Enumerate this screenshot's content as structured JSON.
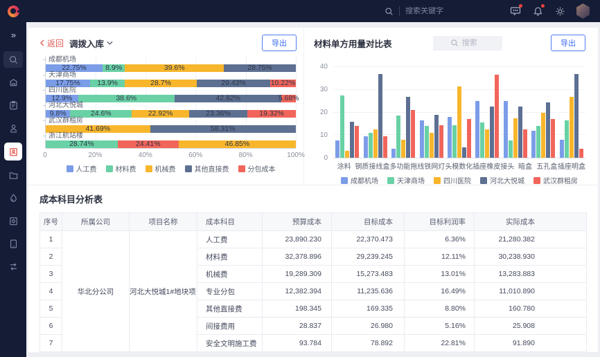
{
  "topbar": {
    "search_placeholder": "搜索关键字",
    "icons": [
      "search-icon",
      "messages-icon",
      "notifications-icon",
      "settings-gear-icon",
      "user-avatar"
    ],
    "notification_dot_color": "#f5413d"
  },
  "sidebar": {
    "icons": [
      "expand-icon",
      "search-icon",
      "building-icon",
      "clipboard-edit-icon",
      "user-stamp-icon",
      "clipboard-user-icon",
      "folder-icon",
      "water-drop-icon",
      "clipboard-gear-icon",
      "tablet-icon",
      "flow-icon"
    ],
    "active_index": 5,
    "active_color": "#e4574d"
  },
  "theme": {
    "topbar_bg": "#151c35",
    "accent_blue": "#3d6ef0",
    "back_red": "#e05a52",
    "card_bg": "#ffffff",
    "page_bg": "#edeff3"
  },
  "left_panel": {
    "back_label": "返回",
    "title": "调拨入库",
    "export_label": "导出"
  },
  "right_panel": {
    "title": "材料单方用量对比表",
    "search_placeholder": "搜索",
    "export_label": "导出"
  },
  "chart_data": [
    {
      "type": "bar",
      "variant": "horizontal-stacked-percent",
      "title": "调拨入库",
      "legend": [
        "人工费",
        "材料费",
        "机械费",
        "其他直接费",
        "分包成本"
      ],
      "series_colors": {
        "人工费": "#7b9de8",
        "材料费": "#69d1a5",
        "机械费": "#f8b62c",
        "其他直接费": "#5d7092",
        "分包成本": "#f1655b"
      },
      "xticks": [
        "0",
        "20%",
        "40%",
        "60%",
        "80%",
        "100%"
      ],
      "xlim": [
        0,
        100
      ],
      "legend_position": "bottom",
      "grid": true,
      "bars": [
        {
          "category": "成都机场",
          "segments": [
            [
              "人工费",
              22.75,
              "22.75%"
            ],
            [
              "材料费",
              8.9,
              "8.9%"
            ],
            [
              "机械费",
              39.6,
              "39.6%"
            ],
            [
              "其他直接费",
              28.75,
              "28.75%"
            ]
          ]
        },
        {
          "category": "天津商场",
          "segments": [
            [
              "人工费",
              17.75,
              "17.75%"
            ],
            [
              "材料费",
              13.9,
              "13.9%"
            ],
            [
              "机械费",
              28.7,
              "28.7%"
            ],
            [
              "其他直接费",
              29.43,
              "29.43%"
            ],
            [
              "分包成本",
              10.22,
              "10.22%"
            ]
          ]
        },
        {
          "category": "四川医院",
          "segments": [
            [
              "人工费",
              12.9,
              "12.9%"
            ],
            [
              "材料费",
              38.6,
              "38.6%"
            ],
            [
              "其他直接费",
              42.82,
              "42.82%"
            ],
            [
              "分包成本",
              5.68,
              "5.68%"
            ]
          ]
        },
        {
          "category": "河北大悦城",
          "segments": [
            [
              "人工费",
              9.8,
              "9.8%"
            ],
            [
              "材料费",
              24.6,
              "24.6%"
            ],
            [
              "机械费",
              22.92,
              "22.92%"
            ],
            [
              "其他直接费",
              23.36,
              "23.36%"
            ],
            [
              "分包成本",
              19.32,
              "19.32%"
            ]
          ]
        },
        {
          "category": "武汉群租房",
          "segments": [
            [
              "机械费",
              41.69,
              "41.69%"
            ],
            [
              "其他直接费",
              58.31,
              "58.31%"
            ]
          ]
        },
        {
          "category": "浙江航站楼",
          "segments": [
            [
              "材料费",
              28.74,
              "28.74%"
            ],
            [
              "分包成本",
              24.41,
              "24.41%"
            ],
            [
              "机械费",
              46.85,
              "46.85%"
            ]
          ]
        }
      ]
    },
    {
      "type": "bar",
      "variant": "grouped",
      "title": "材料单方用量对比表",
      "categories": [
        "涂料",
        "钢质接线盒",
        "多功能拖线",
        "铁网灯头",
        "模数化插座",
        "橡皮接头",
        "暗盒",
        "五孔盒",
        "插座明盒"
      ],
      "series": [
        {
          "name": "成都机场",
          "color": "#7b9de8",
          "values": [
            7.5,
            9.5,
            4,
            16.5,
            18,
            25,
            25,
            12,
            8
          ]
        },
        {
          "name": "天津商场",
          "color": "#69d1a5",
          "values": [
            27.5,
            11,
            18.5,
            14,
            14.5,
            15.5,
            7.5,
            14,
            16.5
          ]
        },
        {
          "name": "四川医院",
          "color": "#f8b62c",
          "values": [
            3,
            12.5,
            8,
            11,
            31.5,
            12.5,
            17.5,
            20,
            27
          ]
        },
        {
          "name": "河北大悦城",
          "color": "#5d7092",
          "values": [
            16,
            37,
            27,
            19,
            4.5,
            22.5,
            22.5,
            24.5,
            37
          ]
        },
        {
          "name": "武汉群租房",
          "color": "#f1655b",
          "values": [
            14,
            9.5,
            21,
            14.5,
            17,
            36.5,
            12.5,
            17,
            4
          ]
        }
      ],
      "ylim": [
        0,
        40
      ],
      "yticks": [
        0,
        10,
        20,
        30,
        40
      ],
      "grid": true,
      "legend_position": "bottom"
    }
  ],
  "cost_table": {
    "title": "成本科目分析表",
    "headers": [
      "序号",
      "所属公司",
      "项目名称",
      "成本科目",
      "预算成本",
      "目标成本",
      "目标利润率",
      "实际成本"
    ],
    "company": "华北分公司",
    "project": "河北大悦城1#地块项目",
    "rows": [
      {
        "no": "1",
        "subject": "人工费",
        "budget": "23,890.230",
        "target": "22,370.473",
        "margin": "6.36%",
        "actual": "21,280.382"
      },
      {
        "no": "2",
        "subject": "材料费",
        "budget": "32,378.896",
        "target": "29,239.245",
        "margin": "12.11%",
        "actual": "30,238.930"
      },
      {
        "no": "3",
        "subject": "机械费",
        "budget": "19,289.309",
        "target": "15,273.483",
        "margin": "13.01%",
        "actual": "13,283.883"
      },
      {
        "no": "4",
        "subject": "专业分包",
        "budget": "12,382.394",
        "target": "11,235.636",
        "margin": "16.49%",
        "actual": "11,010.890"
      },
      {
        "no": "5",
        "subject": "其他直接费",
        "budget": "198.345",
        "target": "169.335",
        "margin": "8.80%",
        "actual": "160.780"
      },
      {
        "no": "6",
        "subject": "间接费用",
        "budget": "28.837",
        "target": "26.980",
        "margin": "5.16%",
        "actual": "25.908"
      },
      {
        "no": "7",
        "subject": "安全文明施工费",
        "budget": "93.784",
        "target": "78.892",
        "margin": "22.81%",
        "actual": "91.890"
      }
    ]
  }
}
